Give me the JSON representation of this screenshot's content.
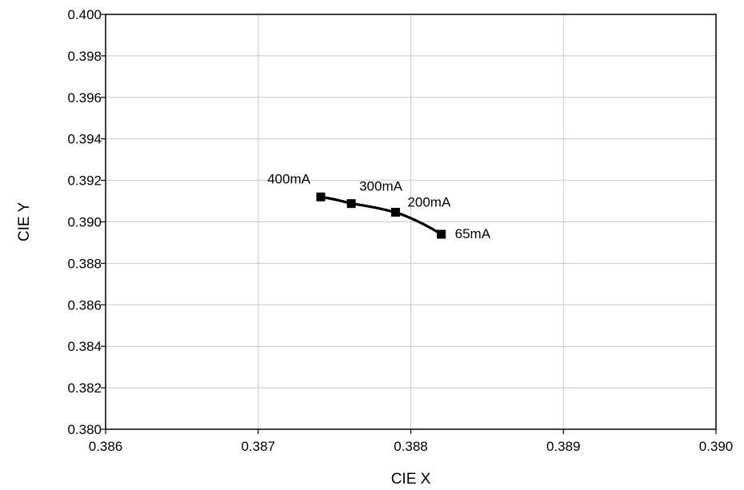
{
  "chart_data": {
    "type": "line",
    "title": "",
    "xlabel": "CIE X",
    "ylabel": "CIE Y",
    "xlim": [
      0.386,
      0.39
    ],
    "ylim": [
      0.38,
      0.4
    ],
    "grid": true,
    "x_ticks": [
      "0.386",
      "0.387",
      "0.388",
      "0.389",
      "0.390"
    ],
    "y_ticks": [
      "0.380",
      "0.382",
      "0.384",
      "0.386",
      "0.388",
      "0.390",
      "0.392",
      "0.394",
      "0.396",
      "0.398",
      "0.400"
    ],
    "series": [
      {
        "color": "#000000",
        "marker": "square",
        "points": [
          {
            "x": 0.38741,
            "y": 0.3912,
            "label": "400mA"
          },
          {
            "x": 0.38761,
            "y": 0.39088,
            "label": "300mA"
          },
          {
            "x": 0.3879,
            "y": 0.39046,
            "label": "200mA"
          },
          {
            "x": 0.3882,
            "y": 0.3894,
            "label": "65mA"
          }
        ]
      }
    ]
  }
}
